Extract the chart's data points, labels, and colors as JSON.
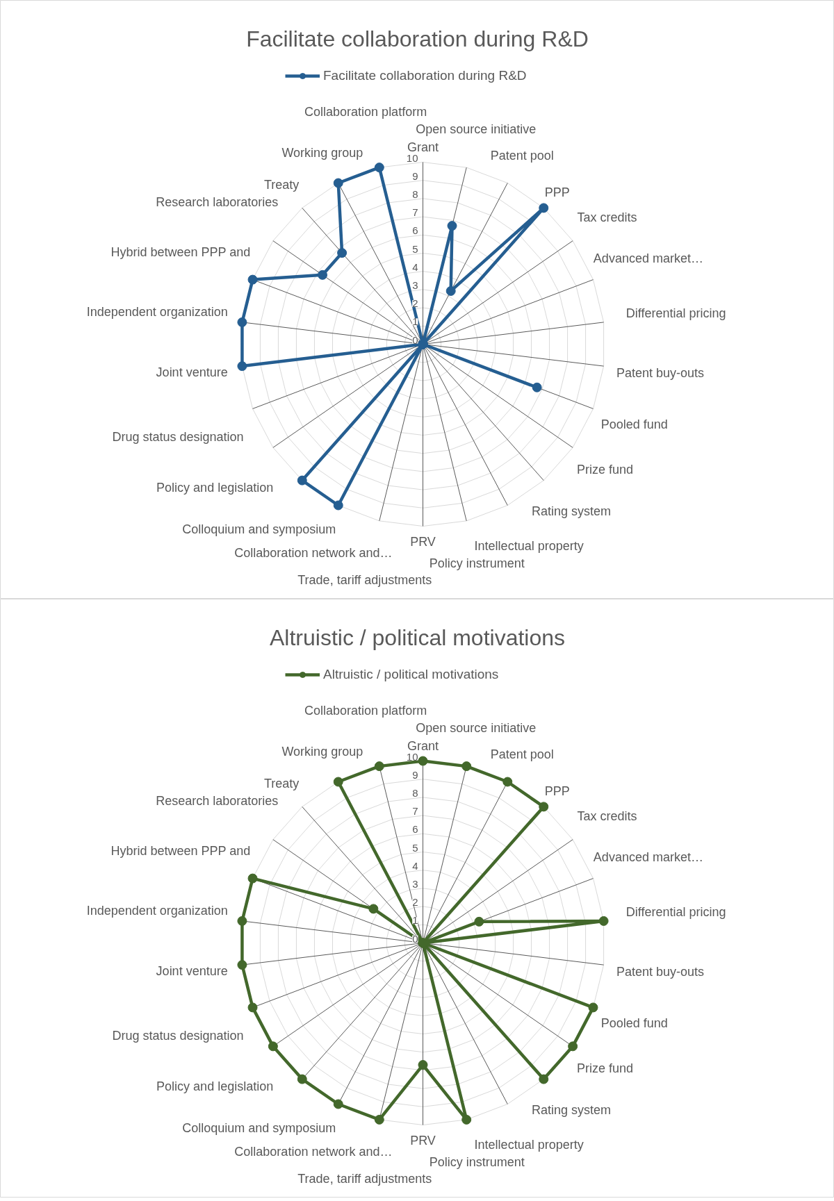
{
  "chart_data": [
    {
      "type": "radar",
      "title": "Facilitate collaboration during R&D",
      "categories": [
        "Grant",
        "Open source initiative",
        "Patent pool",
        "PPP",
        "Tax credits",
        "Advanced market…",
        "Differential pricing",
        "Patent buy-outs",
        "Pooled fund",
        "Prize fund",
        "Rating system",
        "Intellectual property",
        "Policy instrument",
        "PRV",
        "Trade, tariff adjustments",
        "Collaboration network and…",
        "Colloquium and symposium",
        "Policy and legislation",
        "Drug status designation",
        "Joint venture",
        "Independent organization",
        "Hybrid between PPP and",
        "Research laboratories",
        "Treaty",
        "Working group",
        "Collaboration platform"
      ],
      "series": [
        {
          "name": "Facilitate collaboration during R&D",
          "color": "#255e91",
          "values": [
            0,
            6.7,
            3.3,
            10,
            0,
            0,
            0,
            0,
            6.7,
            0,
            0,
            0,
            0,
            0,
            0,
            10,
            10,
            0,
            0,
            10,
            10,
            10,
            6.7,
            6.7,
            10,
            10
          ]
        }
      ],
      "ylim": [
        0,
        10
      ],
      "yticks": [
        0,
        1,
        2,
        3,
        4,
        5,
        6,
        7,
        8,
        9,
        10
      ],
      "legend": "top",
      "marker": "circle",
      "grid": true
    },
    {
      "type": "radar",
      "title": "Altruistic / political motivations",
      "categories": [
        "Grant",
        "Open source initiative",
        "Patent pool",
        "PPP",
        "Tax credits",
        "Advanced market…",
        "Differential pricing",
        "Patent buy-outs",
        "Pooled fund",
        "Prize fund",
        "Rating system",
        "Intellectual property",
        "Policy instrument",
        "PRV",
        "Trade, tariff adjustments",
        "Collaboration network and…",
        "Colloquium and symposium",
        "Policy and legislation",
        "Drug status designation",
        "Joint venture",
        "Independent organization",
        "Hybrid between PPP and",
        "Research laboratories",
        "Treaty",
        "Working group",
        "Collaboration platform"
      ],
      "series": [
        {
          "name": "Altruistic / political motivations",
          "color": "#43682b",
          "values": [
            10,
            10,
            10,
            10,
            0,
            3.3,
            10,
            0,
            10,
            10,
            10,
            0,
            10,
            6.7,
            10,
            10,
            10,
            10,
            10,
            10,
            10,
            10,
            3.3,
            0,
            10,
            10
          ]
        }
      ],
      "ylim": [
        0,
        10
      ],
      "yticks": [
        0,
        1,
        2,
        3,
        4,
        5,
        6,
        7,
        8,
        9,
        10
      ],
      "legend": "top",
      "marker": "circle",
      "grid": true
    }
  ]
}
